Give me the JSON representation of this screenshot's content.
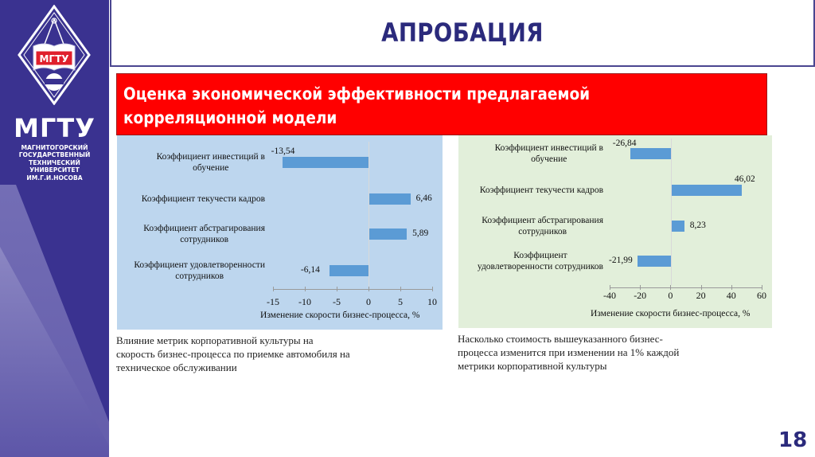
{
  "sidebar": {
    "logo_badge": "МГТУ",
    "logo_gear_text": "ИМ.Г.И.НОСОВА",
    "brand": "МГТУ",
    "subtitle_lines": [
      "МАГНИТОГОРСКИЙ",
      "ГОСУДАРСТВЕННЫЙ",
      "ТЕХНИЧЕСКИЙ",
      "УНИВЕРСИТЕТ",
      "ИМ.Г.И.НОСОВА"
    ],
    "colors": {
      "background": "#3a3290"
    }
  },
  "header": {
    "title": "АПРОБАЦИЯ",
    "title_color": "#2b2a7c"
  },
  "banner": {
    "lines": [
      "Оценка экономической эффективности предлагаемой",
      "корреляционной модели"
    ],
    "background": "#ff0000"
  },
  "chart_data": [
    {
      "type": "bar",
      "orientation": "horizontal",
      "categories": [
        "Коэффициент инвестиций в обучение",
        "Коэффициент текучести кадров",
        "Коэффициент абстрагирования сотрудников",
        "Коэффициент удовлетворенности сотрудников"
      ],
      "category_lines": [
        [
          "Коэффициент инвестиций в",
          "обучение"
        ],
        [
          "Коэффициент текучести кадров"
        ],
        [
          "Коэффициент абстрагирования",
          "сотрудников"
        ],
        [
          "Коэффициент удовлетворенности",
          "сотрудников"
        ]
      ],
      "values": [
        -13.54,
        6.46,
        5.89,
        -6.14
      ],
      "value_labels": [
        "-13,54",
        "6,46",
        "5,89",
        "-6,14"
      ],
      "xlabel": "Изменение скорости бизнес-процесса, %",
      "xlim": [
        -15,
        10
      ],
      "xticks": [
        "-15",
        "-10",
        "-5",
        "0",
        "5",
        "10"
      ],
      "bar_color": "#5b9bd5",
      "background": "#bdd6ee",
      "grid": false,
      "legend": false,
      "caption_lines": [
        "Влияние метрик корпоративной культуры на",
        "скорость бизнес-процесса по приемке автомобиля на",
        "техническое обслуживании"
      ]
    },
    {
      "type": "bar",
      "orientation": "horizontal",
      "categories": [
        "Коэффициент инвестиций в обучение",
        "Коэффициент текучести кадров",
        "Коэффициент абстрагирования сотрудников",
        "Коэффициент удовлетворенности сотрудников"
      ],
      "category_lines": [
        [
          "Коэффициент инвестиций в",
          "обучение"
        ],
        [
          "Коэффициент текучести кадров"
        ],
        [
          "Коэффициент абстрагирования",
          "сотрудников"
        ],
        [
          "Коэффициент",
          "удовлетворенности сотрудников"
        ]
      ],
      "values": [
        -26.84,
        46.02,
        8.23,
        -21.99
      ],
      "value_labels": [
        "-26,84",
        "46,02",
        "8,23",
        "-21,99"
      ],
      "xlabel": "Изменение скорости бизнес-процесса, %",
      "xlim": [
        -40,
        60
      ],
      "xticks": [
        "-40",
        "-20",
        "0",
        "20",
        "40",
        "60"
      ],
      "bar_color": "#5b9bd5",
      "background": "#e2efda",
      "grid": false,
      "legend": false,
      "caption_lines": [
        "Насколько стоимость вышеуказанного бизнес-",
        "процесса изменится при изменении на 1% каждой",
        "метрики корпоративной культуры"
      ]
    }
  ],
  "footer": {
    "page_number": "18"
  }
}
